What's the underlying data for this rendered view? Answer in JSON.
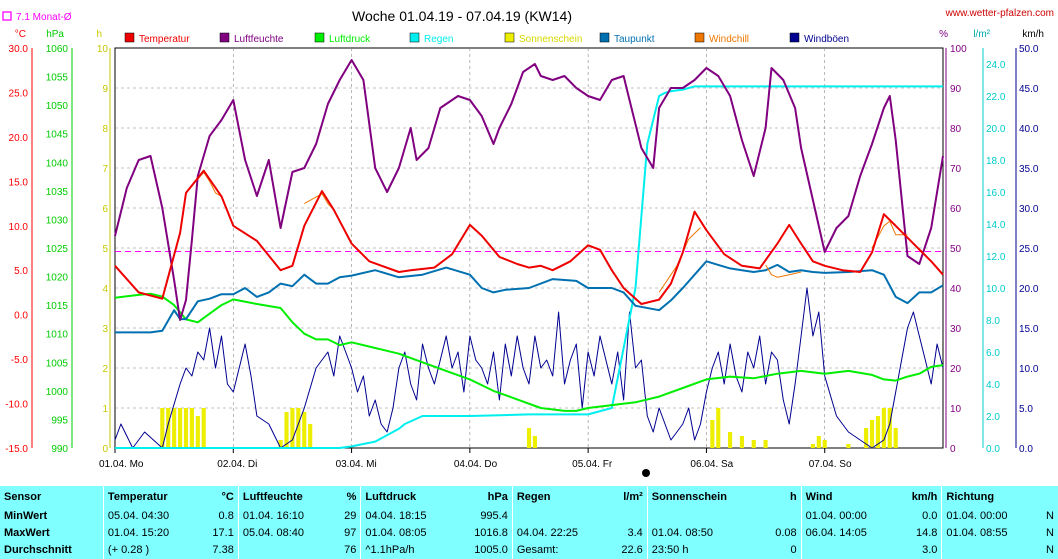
{
  "title": "Woche 01.04.19 - 07.04.19 (KW14)",
  "site": "www.wetter-pfalzen.com",
  "monat_label": "7.1 Monat-Ø",
  "units_left": [
    "°C",
    "hPa",
    "h"
  ],
  "units_right": [
    "%",
    "l/m²",
    "km/h"
  ],
  "colors": {
    "temperatur": "#ee0000",
    "luftfeuchte": "#800080",
    "luftdruck": "#00ee00",
    "regen": "#00eeee",
    "sonnenschein": "#eeee00",
    "taupunkt": "#0070b0",
    "windchill": "#ee7700",
    "windboeen": "#000090",
    "monat": "#ff00ff",
    "wind": "#000090"
  },
  "chart_data": {
    "type": "line",
    "title": "Woche 01.04.19 - 07.04.19 (KW14)",
    "days": [
      "01.04. Mo",
      "02.04. Di",
      "03.04. Mi",
      "04.04. Do",
      "05.04. Fr",
      "06.04. Sa",
      "07.04. So"
    ],
    "legend": [
      "Temperatur",
      "Luftfeuchte",
      "Luftdruck",
      "Regen",
      "Sonnenschein",
      "Taupunkt",
      "Windchill",
      "Windböen"
    ],
    "axes": {
      "temp": {
        "unit": "°C",
        "min": -15,
        "max": 30,
        "ticks": [
          "30.0",
          "25.0",
          "20.0",
          "15.0",
          "10.0",
          "5.0",
          "0.0",
          "-5.0",
          "-10.0",
          "-15.0"
        ]
      },
      "pressure": {
        "unit": "hPa",
        "min": 990,
        "max": 1060,
        "ticks": [
          "1060",
          "1055",
          "1050",
          "1045",
          "1040",
          "1035",
          "1030",
          "1025",
          "1020",
          "1015",
          "1010",
          "1005",
          "1000",
          "995",
          "990"
        ]
      },
      "sun": {
        "unit": "h",
        "min": 0,
        "max": 10,
        "ticks": [
          "10",
          "9",
          "8",
          "7",
          "6",
          "5",
          "4",
          "3",
          "2",
          "1",
          "0"
        ]
      },
      "humidity": {
        "unit": "%",
        "min": 0,
        "max": 100,
        "ticks": [
          "100",
          "90",
          "80",
          "70",
          "60",
          "50",
          "40",
          "30",
          "20",
          "10",
          "0"
        ]
      },
      "rain": {
        "unit": "l/m²",
        "min": 0,
        "max": 25,
        "ticks": [
          "24.0",
          "22.0",
          "20.0",
          "18.0",
          "16.0",
          "14.0",
          "12.0",
          "10.0",
          "8.0",
          "6.0",
          "4.0",
          "2.0",
          "0.0"
        ]
      },
      "wind": {
        "unit": "km/h",
        "min": 0,
        "max": 50,
        "ticks": [
          "50.0",
          "45.0",
          "40.0",
          "35.0",
          "30.0",
          "25.0",
          "20.0",
          "15.0",
          "10.0",
          "5.0",
          "0.0"
        ]
      }
    },
    "monat_avg_temp": 7.1,
    "series": [
      {
        "name": "Temperatur",
        "axis": "temp",
        "x": [
          0,
          0.2,
          0.4,
          0.55,
          0.6,
          0.75,
          0.9,
          1.0,
          1.2,
          1.4,
          1.5,
          1.6,
          1.75,
          1.85,
          2.0,
          2.15,
          2.4,
          2.5,
          2.7,
          2.85,
          3.0,
          3.1,
          3.25,
          3.4,
          3.5,
          3.6,
          3.7,
          3.85,
          4.0,
          4.1,
          4.2,
          4.3,
          4.45,
          4.6,
          4.7,
          4.8,
          4.9,
          5.0,
          5.15,
          5.3,
          5.45,
          5.6,
          5.7,
          5.8,
          5.9,
          6.0,
          6.15,
          6.3,
          6.4,
          6.5,
          6.6,
          6.75,
          6.9,
          7.0
        ],
        "y": [
          5.5,
          2.5,
          1.8,
          9.2,
          13.7,
          16.2,
          13.3,
          10.0,
          8.3,
          5.0,
          5.5,
          10.0,
          13.9,
          11.8,
          8.0,
          6.0,
          4.8,
          5.0,
          5.3,
          6.8,
          10.1,
          8.9,
          6.5,
          5.7,
          5.3,
          5.5,
          5.0,
          6.0,
          7.8,
          7.3,
          5.0,
          3.0,
          1.2,
          1.7,
          3.5,
          7.0,
          11.6,
          9.5,
          6.8,
          5.5,
          5.2,
          8.0,
          10.1,
          8.0,
          6.0,
          5.5,
          5.0,
          4.8,
          7.0,
          11.3,
          10.0,
          8.0,
          6.0,
          4.5
        ]
      },
      {
        "name": "Windchill",
        "axis": "temp",
        "x": [
          0.65,
          0.75,
          0.8,
          0.85,
          0.9,
          1.6,
          1.75,
          1.8,
          1.85,
          4.6,
          4.75,
          4.85,
          4.95,
          5.5,
          5.55,
          5.6,
          5.7,
          5.8,
          6.4,
          6.5,
          6.55,
          6.6,
          6.7
        ],
        "y": [
          14.5,
          16.0,
          15.0,
          13.7,
          13.3,
          12.5,
          13.6,
          12.5,
          11.8,
          2.5,
          5.5,
          8.5,
          9.8,
          5.6,
          4.5,
          4.2,
          4.5,
          4.8,
          7.5,
          10.0,
          10.5,
          9.0,
          9.0
        ]
      },
      {
        "name": "Luftfeuchte",
        "axis": "humidity",
        "x": [
          0,
          0.1,
          0.2,
          0.3,
          0.4,
          0.5,
          0.55,
          0.6,
          0.65,
          0.7,
          0.8,
          0.9,
          1.0,
          1.1,
          1.2,
          1.3,
          1.4,
          1.5,
          1.6,
          1.7,
          1.8,
          1.9,
          2.0,
          2.1,
          2.2,
          2.3,
          2.4,
          2.5,
          2.55,
          2.65,
          2.7,
          2.75,
          2.85,
          2.9,
          3.0,
          3.1,
          3.2,
          3.25,
          3.35,
          3.45,
          3.55,
          3.6,
          3.7,
          3.8,
          3.9,
          4.0,
          4.1,
          4.2,
          4.3,
          4.35,
          4.45,
          4.55,
          4.6,
          4.7,
          4.8,
          4.9,
          5.0,
          5.1,
          5.2,
          5.3,
          5.4,
          5.5,
          5.55,
          5.65,
          5.75,
          5.8,
          5.9,
          6.0,
          6.1,
          6.2,
          6.3,
          6.4,
          6.5,
          6.55,
          6.6,
          6.7,
          6.8,
          6.9,
          7.0
        ],
        "y": [
          53,
          65,
          72,
          73,
          60,
          42,
          32,
          37,
          52,
          68,
          78,
          82,
          87,
          72,
          63,
          72,
          55,
          69,
          70,
          76,
          86,
          92,
          97,
          92,
          70,
          64,
          70,
          80,
          72,
          75,
          80,
          85,
          87,
          88,
          87,
          83,
          76,
          80,
          86,
          94,
          96,
          93,
          92,
          93,
          90,
          88,
          87,
          92,
          93,
          87,
          75,
          70,
          85,
          90,
          90,
          92,
          95,
          93,
          88,
          77,
          68,
          80,
          95,
          92,
          85,
          75,
          62,
          49,
          55,
          58,
          68,
          76,
          85,
          88,
          77,
          48,
          46,
          55,
          73
        ]
      },
      {
        "name": "Taupunkt",
        "axis": "temp",
        "x": [
          0,
          0.2,
          0.3,
          0.4,
          0.5,
          0.55,
          0.6,
          0.7,
          0.8,
          0.9,
          1.0,
          1.1,
          1.2,
          1.3,
          1.4,
          1.5,
          1.6,
          1.7,
          1.8,
          1.9,
          2.0,
          2.2,
          2.4,
          2.6,
          2.8,
          3.0,
          3.1,
          3.2,
          3.3,
          3.5,
          3.7,
          3.9,
          4.0,
          4.2,
          4.3,
          4.4,
          4.6,
          4.7,
          4.8,
          4.9,
          5.0,
          5.1,
          5.2,
          5.3,
          5.4,
          5.5,
          5.6,
          5.7,
          5.8,
          5.9,
          6.0,
          6.2,
          6.4,
          6.5,
          6.6,
          6.7,
          6.8,
          6.9,
          7.0
        ],
        "y": [
          -2,
          -2,
          -2,
          -1.8,
          0.5,
          -0.5,
          -0.5,
          1.5,
          1.8,
          2.3,
          2.3,
          3.0,
          2.0,
          2.5,
          3.5,
          3.2,
          4.5,
          3.5,
          3.5,
          4.2,
          4.4,
          5.0,
          4.2,
          4.5,
          5.3,
          4.5,
          3.0,
          2.5,
          2.8,
          3.0,
          4.0,
          3.8,
          3.0,
          3.0,
          2.5,
          1.0,
          0.5,
          1.6,
          3.0,
          4.5,
          6.0,
          5.6,
          5.2,
          5.0,
          4.8,
          5.0,
          5.6,
          4.8,
          5.0,
          4.8,
          4.7,
          4.8,
          5.0,
          4.5,
          2.0,
          1.3,
          2.5,
          2.5,
          3.3
        ]
      },
      {
        "name": "Luftdruck",
        "axis": "pressure",
        "x": [
          0,
          0.2,
          0.3,
          0.4,
          0.5,
          0.6,
          0.7,
          0.8,
          0.9,
          1.0,
          1.2,
          1.4,
          1.5,
          1.6,
          1.7,
          1.8,
          1.9,
          2.0,
          2.2,
          2.4,
          2.6,
          2.8,
          3.0,
          3.2,
          3.4,
          3.6,
          3.8,
          3.9,
          4.0,
          4.2,
          4.4,
          4.6,
          4.8,
          5.0,
          5.2,
          5.4,
          5.6,
          5.8,
          6.0,
          6.2,
          6.4,
          6.5,
          6.6,
          6.7,
          6.8,
          6.9,
          7.0
        ],
        "y": [
          1016.3,
          1016.8,
          1017.0,
          1016.5,
          1015.0,
          1012.5,
          1012.0,
          1013.5,
          1015.0,
          1016.0,
          1015.2,
          1014.5,
          1012.0,
          1010.0,
          1009.0,
          1009.0,
          1008.0,
          1008.5,
          1007.5,
          1006.5,
          1005.0,
          1003.5,
          1002.0,
          1000.0,
          998.5,
          997.0,
          996.5,
          996.5,
          997.0,
          997.5,
          998.0,
          999.0,
          1000.5,
          1002.0,
          1002.5,
          1002.2,
          1003.0,
          1003.5,
          1003.0,
          1003.5,
          1002.8,
          1002.0,
          1001.8,
          1002.5,
          1003.0,
          1004.2,
          1004.5
        ]
      },
      {
        "name": "Regen",
        "axis": "rain",
        "x": [
          0,
          1.5,
          1.7,
          1.8,
          1.9,
          2.0,
          2.2,
          2.4,
          2.45,
          2.6,
          3.0,
          3.5,
          4.0,
          4.2,
          4.4,
          4.5,
          4.6,
          4.65,
          4.7,
          4.8,
          4.9,
          5.0,
          7.0
        ],
        "y": [
          0,
          0,
          0,
          0,
          0,
          0.1,
          0.4,
          1.2,
          1.5,
          2.0,
          2.0,
          2.1,
          2.1,
          2.5,
          10.0,
          19.0,
          22.0,
          22.2,
          22.3,
          22.4,
          22.6,
          22.6,
          22.6
        ]
      },
      {
        "name": "Windböen",
        "axis": "wind",
        "x": [
          0,
          0.05,
          0.15,
          0.25,
          0.4,
          0.45,
          0.55,
          0.6,
          0.65,
          0.7,
          0.75,
          0.8,
          0.85,
          0.9,
          0.95,
          1.0,
          1.05,
          1.1,
          1.15,
          1.2,
          1.3,
          1.4,
          1.5,
          1.6,
          1.7,
          1.8,
          1.85,
          1.9,
          1.95,
          2.0,
          2.05,
          2.1,
          2.15,
          2.2,
          2.25,
          2.3,
          2.35,
          2.4,
          2.45,
          2.5,
          2.55,
          2.6,
          2.65,
          2.7,
          2.8,
          2.85,
          2.9,
          2.95,
          3.0,
          3.05,
          3.1,
          3.15,
          3.2,
          3.25,
          3.3,
          3.35,
          3.4,
          3.45,
          3.5,
          3.55,
          3.6,
          3.65,
          3.7,
          3.75,
          3.8,
          3.85,
          3.9,
          3.95,
          4.0,
          4.05,
          4.1,
          4.15,
          4.2,
          4.25,
          4.3,
          4.35,
          4.4,
          4.45,
          4.5,
          4.55,
          4.6,
          4.65,
          4.7,
          4.75,
          4.8,
          4.85,
          4.9,
          4.95,
          5.0,
          5.05,
          5.1,
          5.15,
          5.2,
          5.25,
          5.3,
          5.35,
          5.4,
          5.45,
          5.5,
          5.55,
          5.6,
          5.65,
          5.7,
          5.75,
          5.8,
          5.85,
          5.9,
          5.95,
          6.0,
          6.1,
          6.2,
          6.3,
          6.4,
          6.5,
          6.55,
          6.6,
          6.65,
          6.7,
          6.75,
          6.8,
          6.85,
          6.9,
          6.95,
          7.0
        ],
        "y": [
          1,
          3,
          0,
          2,
          0,
          3,
          8,
          10,
          9,
          12,
          11,
          15,
          10,
          14,
          8,
          7,
          10,
          13,
          9,
          4,
          3,
          0,
          1,
          5,
          10,
          12,
          9,
          14,
          12,
          10,
          7,
          9,
          4,
          6,
          3,
          2,
          5,
          10,
          12,
          8,
          6,
          13,
          10,
          8,
          14,
          10,
          12,
          7,
          14,
          11,
          10,
          8,
          12,
          6,
          13,
          9,
          14,
          10,
          8,
          14,
          10,
          11,
          9,
          17,
          8,
          11,
          13,
          5,
          12,
          9,
          14,
          11,
          8,
          12,
          6,
          17,
          10,
          11,
          4,
          2,
          5,
          3,
          1,
          2,
          3,
          5,
          1,
          3,
          7,
          10,
          12,
          8,
          13,
          9,
          7,
          12,
          10,
          14,
          8,
          12,
          11,
          6,
          3,
          8,
          14,
          20,
          14,
          17,
          9,
          4,
          2,
          1,
          0,
          1,
          3,
          7,
          11,
          15,
          17,
          14,
          11,
          8,
          13,
          10
        ]
      },
      {
        "name": "Sonnenschein",
        "axis": "sun",
        "bar_width_day": 0.035,
        "x": [
          0.4,
          0.45,
          0.5,
          0.55,
          0.6,
          0.65,
          0.7,
          0.75,
          1.4,
          1.45,
          1.5,
          1.55,
          1.6,
          1.65,
          3.5,
          3.55,
          5.05,
          5.1,
          5.2,
          5.3,
          5.4,
          5.5,
          5.9,
          5.95,
          6.0,
          6.2,
          6.35,
          6.4,
          6.45,
          6.5,
          6.55,
          6.6
        ],
        "y": [
          1.0,
          1.0,
          1.0,
          1.0,
          1.0,
          1.0,
          0.8,
          1.0,
          0.2,
          0.9,
          1.0,
          1.0,
          0.9,
          0.6,
          0.5,
          0.3,
          0.7,
          1.0,
          0.4,
          0.3,
          0.2,
          0.2,
          0.1,
          0.3,
          0.2,
          0.1,
          0.5,
          0.7,
          0.8,
          1.0,
          1.0,
          0.5
        ]
      }
    ]
  },
  "stats": {
    "headers": [
      {
        "label": "Sensor",
        "unit": ""
      },
      {
        "label": "Temperatur",
        "unit": "°C"
      },
      {
        "label": "Luftfeuchte",
        "unit": "%"
      },
      {
        "label": "Luftdruck",
        "unit": "hPa"
      },
      {
        "label": "Regen",
        "unit": "l/m²"
      },
      {
        "label": "Sonnenschein",
        "unit": "h"
      },
      {
        "label": "Wind",
        "unit": "km/h"
      },
      {
        "label": "Richtung",
        "unit": ""
      }
    ],
    "rows": [
      {
        "label": "MinWert",
        "cells": [
          [
            "05.04.  04:30",
            "0.8"
          ],
          [
            "01.04.  16:10",
            "29"
          ],
          [
            "04.04.  18:15",
            "995.4"
          ],
          [
            "",
            ""
          ],
          [
            "",
            ""
          ],
          [
            "01.04.  00:00",
            "0.0"
          ],
          [
            "01.04.  00:00",
            "N"
          ]
        ]
      },
      {
        "label": "MaxWert",
        "cells": [
          [
            "01.04.  15:20",
            "17.1"
          ],
          [
            "05.04.  08:40",
            "97"
          ],
          [
            "01.04.  08:05",
            "1016.8"
          ],
          [
            "04.04.  22:25",
            "3.4"
          ],
          [
            "01.04.  08:50",
            "0.08"
          ],
          [
            "06.04.  14:05",
            "14.8"
          ],
          [
            "01.04.  08:55",
            "N"
          ]
        ]
      },
      {
        "label": "Durchschnitt",
        "cells": [
          [
            "(+ 0.28 )",
            "7.38"
          ],
          [
            "",
            "76"
          ],
          [
            "^1.1hPa/h",
            "1005.0"
          ],
          [
            "Gesamt:",
            "22.6"
          ],
          [
            "23:50 h",
            "0"
          ],
          [
            "",
            "3.0"
          ],
          [
            "",
            "N"
          ]
        ]
      }
    ]
  }
}
